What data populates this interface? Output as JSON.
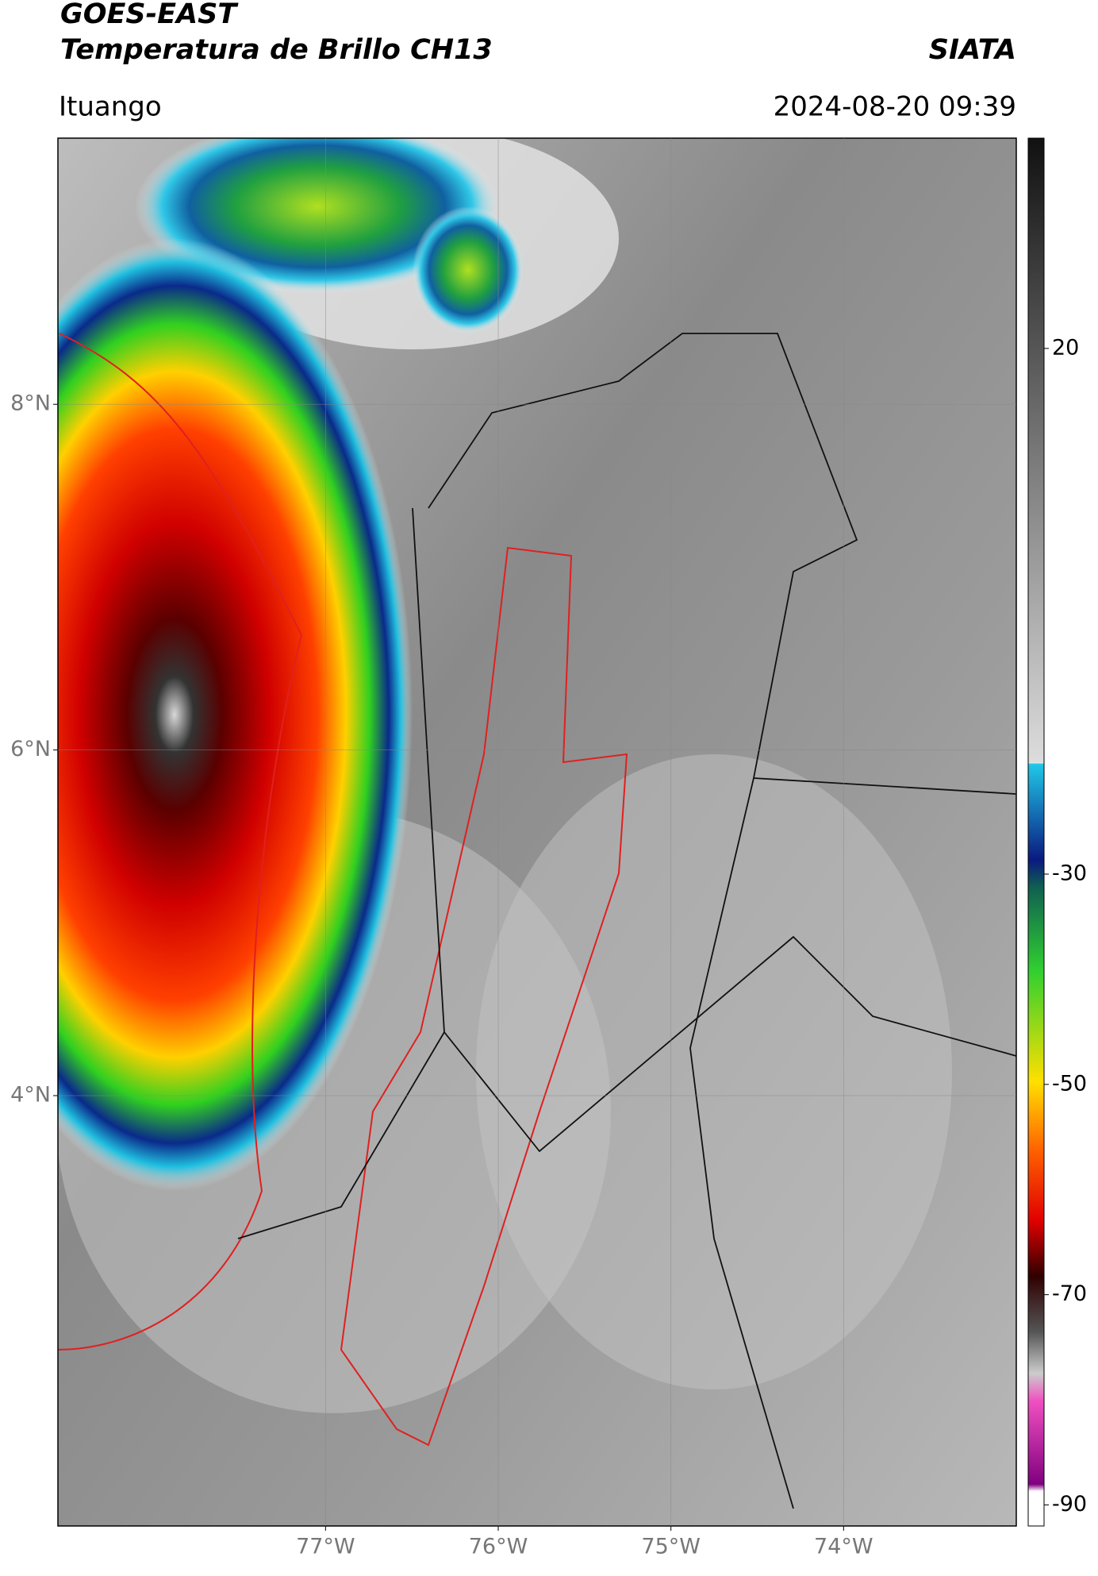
{
  "header": {
    "title_line1": "GOES-EAST",
    "title_line2": "Temperatura de Brillo CH13",
    "source": "SIATA",
    "location": "Ituango",
    "timestamp": "2024-08-20 09:39"
  },
  "map": {
    "lat_range": [
      1.51,
      9.54
    ],
    "lon_range": [
      -78.55,
      -73.0
    ],
    "lat_ticks": [
      {
        "value": 8,
        "label": "8°N"
      },
      {
        "value": 6,
        "label": "6°N"
      },
      {
        "value": 4,
        "label": "4°N"
      }
    ],
    "lon_ticks": [
      {
        "value": -77,
        "label": "77°W"
      },
      {
        "value": -76,
        "label": "76°W"
      },
      {
        "value": -75,
        "label": "75°W"
      },
      {
        "value": -74,
        "label": "74°W"
      }
    ]
  },
  "colorbar": {
    "range": [
      -92,
      40
    ],
    "ticks": [
      20,
      -30,
      -50,
      -70,
      -90
    ]
  }
}
